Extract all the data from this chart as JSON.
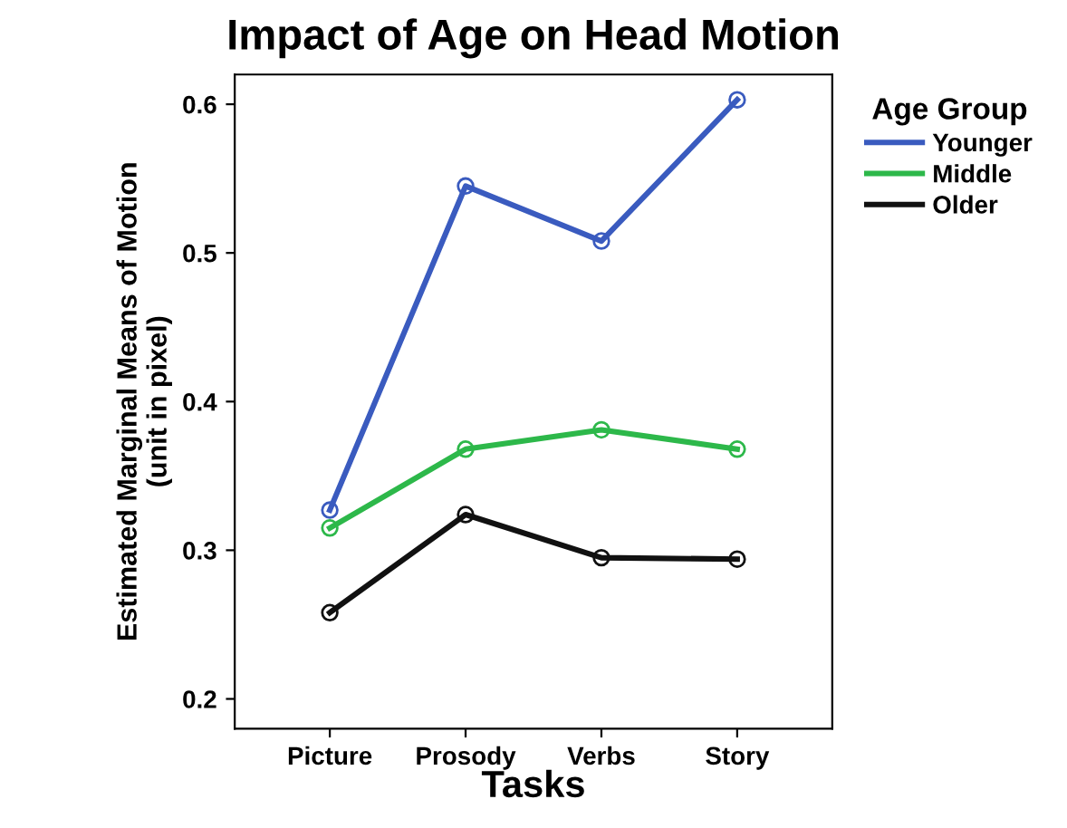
{
  "chart_data": {
    "type": "line",
    "title": "Impact of Age on Head Motion",
    "xlabel": "Tasks",
    "ylabel": "Estimated Marginal Means of Motion\n(unit in pixel)",
    "legend_title": "Age Group",
    "categories": [
      "Picture",
      "Prosody",
      "Verbs",
      "Story"
    ],
    "series": [
      {
        "name": "Younger",
        "color": "#3a5bbf",
        "values": [
          0.327,
          0.545,
          0.508,
          0.603
        ]
      },
      {
        "name": "Middle",
        "color": "#2db84a",
        "values": [
          0.315,
          0.368,
          0.381,
          0.368
        ]
      },
      {
        "name": "Older",
        "color": "#111111",
        "values": [
          0.258,
          0.324,
          0.295,
          0.294
        ]
      }
    ],
    "ylim": [
      0.18,
      0.62
    ],
    "yticks": [
      0.2,
      0.3,
      0.4,
      0.5,
      0.6
    ],
    "grid": false,
    "legend": "right",
    "marker": "circle",
    "line_style": "solid"
  }
}
